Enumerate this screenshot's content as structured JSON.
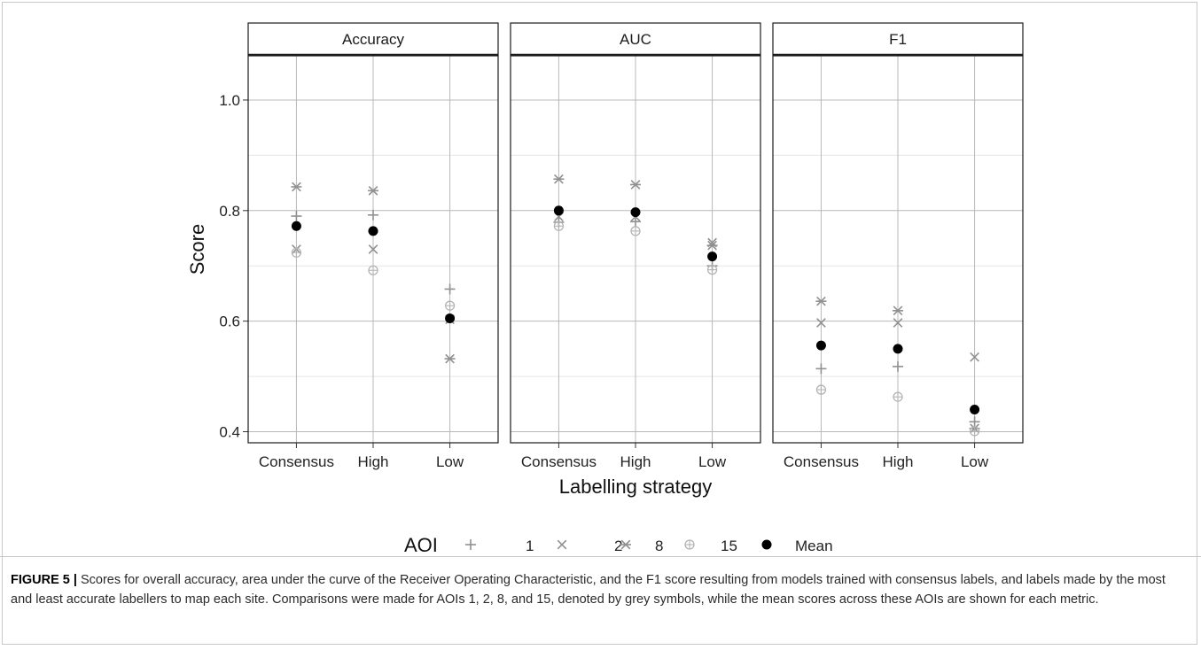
{
  "figure": {
    "caption_label": "FIGURE 5 |",
    "caption_text": " Scores for overall accuracy, area under the curve of the Receiver Operating Characteristic, and the F1 score resulting from models trained with consensus labels, and labels made by the most and least accurate labellers to map each site. Comparisons were made for AOIs 1, 2, 8, and 15, denoted by grey symbols, while the mean scores across these AOIs are shown for each metric."
  },
  "chart_data": {
    "type": "scatter",
    "facets": [
      "Accuracy",
      "AUC",
      "F1"
    ],
    "categories": [
      "Consensus",
      "High",
      "Low"
    ],
    "xlabel": "Labelling strategy",
    "ylabel": "Score",
    "ylim": [
      0.38,
      1.08
    ],
    "yticks": [
      0.4,
      0.6,
      0.8,
      1.0
    ],
    "ytick_labels": [
      "0.4",
      "0.6",
      "0.8",
      "1.0"
    ],
    "grid": true,
    "legend": {
      "title": "AOI",
      "position": "bottom",
      "entries": [
        {
          "label": "1",
          "symbol": "plus"
        },
        {
          "label": "2",
          "symbol": "cross"
        },
        {
          "label": "8",
          "symbol": "asterisk"
        },
        {
          "label": "15",
          "symbol": "circleplus"
        },
        {
          "label": "Mean",
          "symbol": "dot"
        }
      ]
    },
    "colors": {
      "aoi_symbol": "#909090",
      "aoi_15_symbol": "#b4b4b4",
      "mean": "#000000",
      "grid_major": "#b8b8b8",
      "grid_minor": "#e6e6e6",
      "strip_border": "#1a1a1a"
    },
    "series": [
      {
        "name": "1",
        "values": {
          "Accuracy": [
            0.79,
            0.792,
            0.658
          ],
          "AUC": [
            0.779,
            0.78,
            0.7
          ],
          "F1": [
            0.514,
            0.518,
            0.418
          ]
        }
      },
      {
        "name": "2",
        "values": {
          "Accuracy": [
            0.73,
            0.73,
            0.603
          ],
          "AUC": [
            0.789,
            0.789,
            0.742
          ],
          "F1": [
            0.597,
            0.597,
            0.535
          ]
        }
      },
      {
        "name": "8",
        "values": {
          "Accuracy": [
            0.843,
            0.836,
            0.532
          ],
          "AUC": [
            0.857,
            0.847,
            0.737
          ],
          "F1": [
            0.636,
            0.619,
            0.406
          ]
        }
      },
      {
        "name": "15",
        "values": {
          "Accuracy": [
            0.724,
            0.692,
            0.628
          ],
          "AUC": [
            0.772,
            0.763,
            0.693
          ],
          "F1": [
            0.476,
            0.463,
            0.401
          ]
        }
      },
      {
        "name": "Mean",
        "values": {
          "Accuracy": [
            0.772,
            0.763,
            0.605
          ],
          "AUC": [
            0.8,
            0.797,
            0.717
          ],
          "F1": [
            0.556,
            0.55,
            0.44
          ]
        }
      }
    ]
  }
}
